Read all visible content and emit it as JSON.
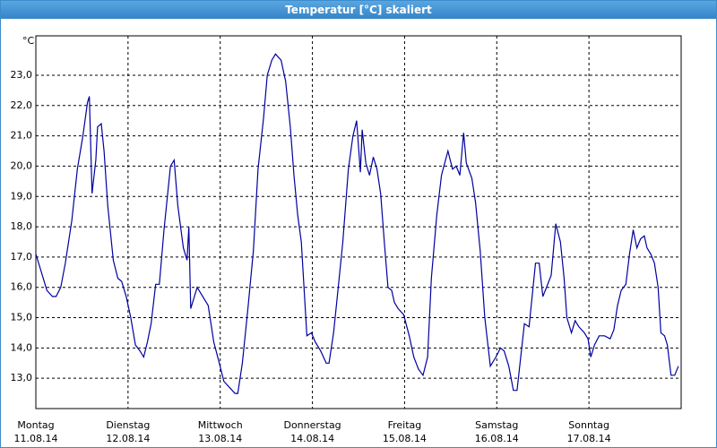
{
  "chart_data": {
    "type": "line",
    "title": "Temperatur [°C] skaliert",
    "y_label": "°C",
    "xlim": [
      0,
      7
    ],
    "ylim": [
      12.0,
      24.3
    ],
    "xticks": [
      {
        "value": 0,
        "label": "Montag",
        "sublabel": "11.08.14"
      },
      {
        "value": 1,
        "label": "Dienstag",
        "sublabel": "12.08.14"
      },
      {
        "value": 2,
        "label": "Mittwoch",
        "sublabel": "13.08.14"
      },
      {
        "value": 3,
        "label": "Donnerstag",
        "sublabel": "14.08.14"
      },
      {
        "value": 4,
        "label": "Freitag",
        "sublabel": "15.08.14"
      },
      {
        "value": 5,
        "label": "Samstag",
        "sublabel": "16.08.14"
      },
      {
        "value": 6,
        "label": "Sonntag",
        "sublabel": "17.08.14"
      }
    ],
    "yticks": [
      {
        "value": 13,
        "label": "13,0"
      },
      {
        "value": 14,
        "label": "14,0"
      },
      {
        "value": 15,
        "label": "15,0"
      },
      {
        "value": 16,
        "label": "16,0"
      },
      {
        "value": 17,
        "label": "17,0"
      },
      {
        "value": 18,
        "label": "18,0"
      },
      {
        "value": 19,
        "label": "19,0"
      },
      {
        "value": 20,
        "label": "20,0"
      },
      {
        "value": 21,
        "label": "21,0"
      },
      {
        "value": 22,
        "label": "22,0"
      },
      {
        "value": 23,
        "label": "23,0"
      }
    ],
    "grid": true,
    "series": [
      {
        "color": "#0000a0",
        "x": [
          0.0,
          0.06,
          0.12,
          0.18,
          0.22,
          0.27,
          0.32,
          0.39,
          0.45,
          0.51,
          0.56,
          0.58,
          0.61,
          0.65,
          0.67,
          0.71,
          0.74,
          0.78,
          0.84,
          0.89,
          0.93,
          0.98,
          1.03,
          1.08,
          1.13,
          1.17,
          1.21,
          1.25,
          1.3,
          1.34,
          1.39,
          1.46,
          1.5,
          1.54,
          1.6,
          1.64,
          1.66,
          1.68,
          1.75,
          1.81,
          1.87,
          1.93,
          1.99,
          2.04,
          2.1,
          2.16,
          2.19,
          2.24,
          2.3,
          2.36,
          2.41,
          2.47,
          2.51,
          2.56,
          2.6,
          2.66,
          2.71,
          2.76,
          2.8,
          2.84,
          2.88,
          2.94,
          2.99,
          3.03,
          3.09,
          3.15,
          3.18,
          3.23,
          3.28,
          3.33,
          3.39,
          3.44,
          3.48,
          3.52,
          3.54,
          3.58,
          3.62,
          3.66,
          3.7,
          3.74,
          3.78,
          3.82,
          3.86,
          3.89,
          3.93,
          3.99,
          4.05,
          4.1,
          4.15,
          4.2,
          4.25,
          4.29,
          4.35,
          4.4,
          4.47,
          4.52,
          4.56,
          4.6,
          4.64,
          4.67,
          4.73,
          4.77,
          4.82,
          4.87,
          4.93,
          4.99,
          5.04,
          5.08,
          5.13,
          5.18,
          5.22,
          5.26,
          5.3,
          5.35,
          5.38,
          5.42,
          5.46,
          5.5,
          5.54,
          5.59,
          5.64,
          5.69,
          5.73,
          5.76,
          5.81,
          5.85,
          5.89,
          5.95,
          5.99,
          6.02,
          6.06,
          6.11,
          6.17,
          6.23,
          6.27,
          6.31,
          6.35,
          6.4,
          6.44,
          6.48,
          6.52,
          6.56,
          6.6,
          6.63,
          6.67,
          6.71,
          6.75,
          6.78,
          6.82,
          6.85,
          6.89,
          6.93,
          6.97
        ],
        "values": [
          17.1,
          16.5,
          15.9,
          15.7,
          15.7,
          16.0,
          16.8,
          18.2,
          19.9,
          21.0,
          22.1,
          22.3,
          19.1,
          20.2,
          21.3,
          21.4,
          20.5,
          18.7,
          16.9,
          16.3,
          16.2,
          15.7,
          15.0,
          14.1,
          13.9,
          13.7,
          14.2,
          14.8,
          16.1,
          16.1,
          17.9,
          20.0,
          20.2,
          18.7,
          17.3,
          16.9,
          18.0,
          15.3,
          16.0,
          15.7,
          15.4,
          14.2,
          13.5,
          12.9,
          12.7,
          12.5,
          12.5,
          13.5,
          15.3,
          17.2,
          19.9,
          21.6,
          23.0,
          23.5,
          23.7,
          23.5,
          22.8,
          21.3,
          19.7,
          18.4,
          17.5,
          14.4,
          14.5,
          14.2,
          13.9,
          13.5,
          13.5,
          14.5,
          16.0,
          17.5,
          19.9,
          21.0,
          21.5,
          19.8,
          21.2,
          20.1,
          19.7,
          20.3,
          19.9,
          19.1,
          17.5,
          16.0,
          15.9,
          15.5,
          15.3,
          15.1,
          14.4,
          13.7,
          13.3,
          13.1,
          13.7,
          16.3,
          18.4,
          19.7,
          20.5,
          19.9,
          20.0,
          19.7,
          21.1,
          20.1,
          19.6,
          18.8,
          17.2,
          15.0,
          13.4,
          13.7,
          14.0,
          13.9,
          13.4,
          12.6,
          12.6,
          13.7,
          14.8,
          14.7,
          15.6,
          16.8,
          16.8,
          15.7,
          16.0,
          16.4,
          18.1,
          17.5,
          16.3,
          15.0,
          14.5,
          14.9,
          14.7,
          14.5,
          14.3,
          13.7,
          14.1,
          14.4,
          14.4,
          14.3,
          14.6,
          15.4,
          15.9,
          16.1,
          17.1,
          17.9,
          17.3,
          17.6,
          17.7,
          17.3,
          17.1,
          16.8,
          16.0,
          14.5,
          14.4,
          14.1,
          13.1,
          13.1,
          13.4
        ]
      }
    ]
  }
}
